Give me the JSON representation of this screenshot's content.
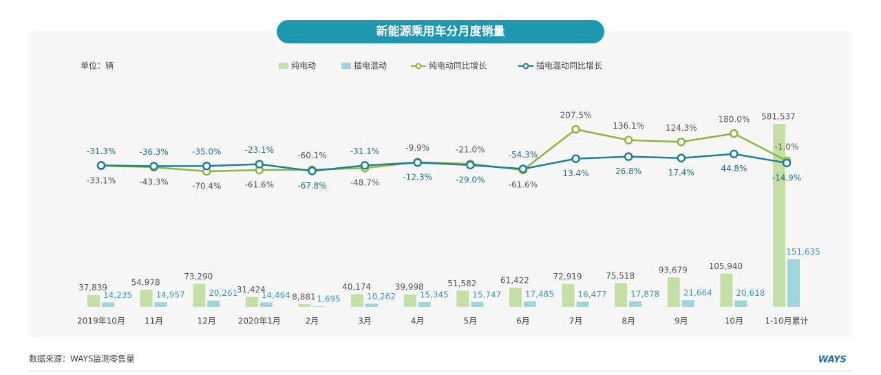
{
  "chart_data": {
    "type": "combo",
    "title": "新能源乘用车分月度销量",
    "unit": "单位：辆",
    "source": "数据来源：WAYS监测零售量",
    "logo": "WAYS",
    "categories": [
      "2019年10月",
      "11月",
      "12月",
      "2020年1月",
      "2月",
      "3月",
      "4月",
      "5月",
      "6月",
      "7月",
      "8月",
      "9月",
      "10月",
      "1-10月累计"
    ],
    "series": [
      {
        "name": "纯电动",
        "type": "bar",
        "color": "#c5e0a5",
        "label_color": "#555555",
        "values": [
          37839,
          54978,
          73290,
          31424,
          8881,
          40174,
          39998,
          51582,
          61422,
          72919,
          75518,
          93679,
          105940,
          581537
        ],
        "value_labels": [
          "37,839",
          "54,978",
          "73,290",
          "31,424",
          "8,881",
          "40,174",
          "39,998",
          "51,582",
          "61,422",
          "72,919",
          "75,518",
          "93,679",
          "105,940",
          "581,537"
        ]
      },
      {
        "name": "插电混动",
        "type": "bar",
        "color": "#9fd5df",
        "label_color": "#3a9bb5",
        "values": [
          14235,
          14957,
          20261,
          14464,
          1695,
          10262,
          15345,
          15747,
          17485,
          16477,
          17878,
          21664,
          20618,
          151635
        ],
        "value_labels": [
          "14,235",
          "14,957",
          "20,261",
          "14,464",
          "1,695",
          "10,262",
          "15,345",
          "15,747",
          "17,485",
          "16,477",
          "17,878",
          "21,664",
          "20,618",
          "151,635"
        ]
      },
      {
        "name": "纯电动同比增长",
        "type": "line",
        "color": "#8db53c",
        "label_color": "#555555",
        "values": [
          -33.1,
          -43.3,
          -70.4,
          -61.6,
          -60.1,
          -48.7,
          -9.9,
          -21.0,
          -61.6,
          207.5,
          136.1,
          124.3,
          180.0,
          -1.0
        ],
        "value_labels": [
          "-33.1%",
          "-43.3%",
          "-70.4%",
          "-61.6%",
          "-60.1%",
          "-48.7%",
          "-9.9%",
          "-21.0%",
          "-61.6%",
          "207.5%",
          "136.1%",
          "124.3%",
          "180.0%",
          "-1.0%"
        ]
      },
      {
        "name": "插电混动同比增长",
        "type": "line",
        "color": "#1f7f96",
        "label_color": "#1f6f86",
        "values": [
          -31.3,
          -36.3,
          -35.0,
          -23.1,
          -67.8,
          -31.1,
          -12.3,
          -29.0,
          -54.3,
          13.4,
          26.8,
          17.4,
          44.8,
          -14.9
        ],
        "value_labels": [
          "-31.3%",
          "-36.3%",
          "-35.0%",
          "-23.1%",
          "-67.8%",
          "-31.1%",
          "-12.3%",
          "-29.0%",
          "-54.3%",
          "13.4%",
          "26.8%",
          "17.4%",
          "44.8%",
          "-14.9%"
        ]
      }
    ]
  }
}
